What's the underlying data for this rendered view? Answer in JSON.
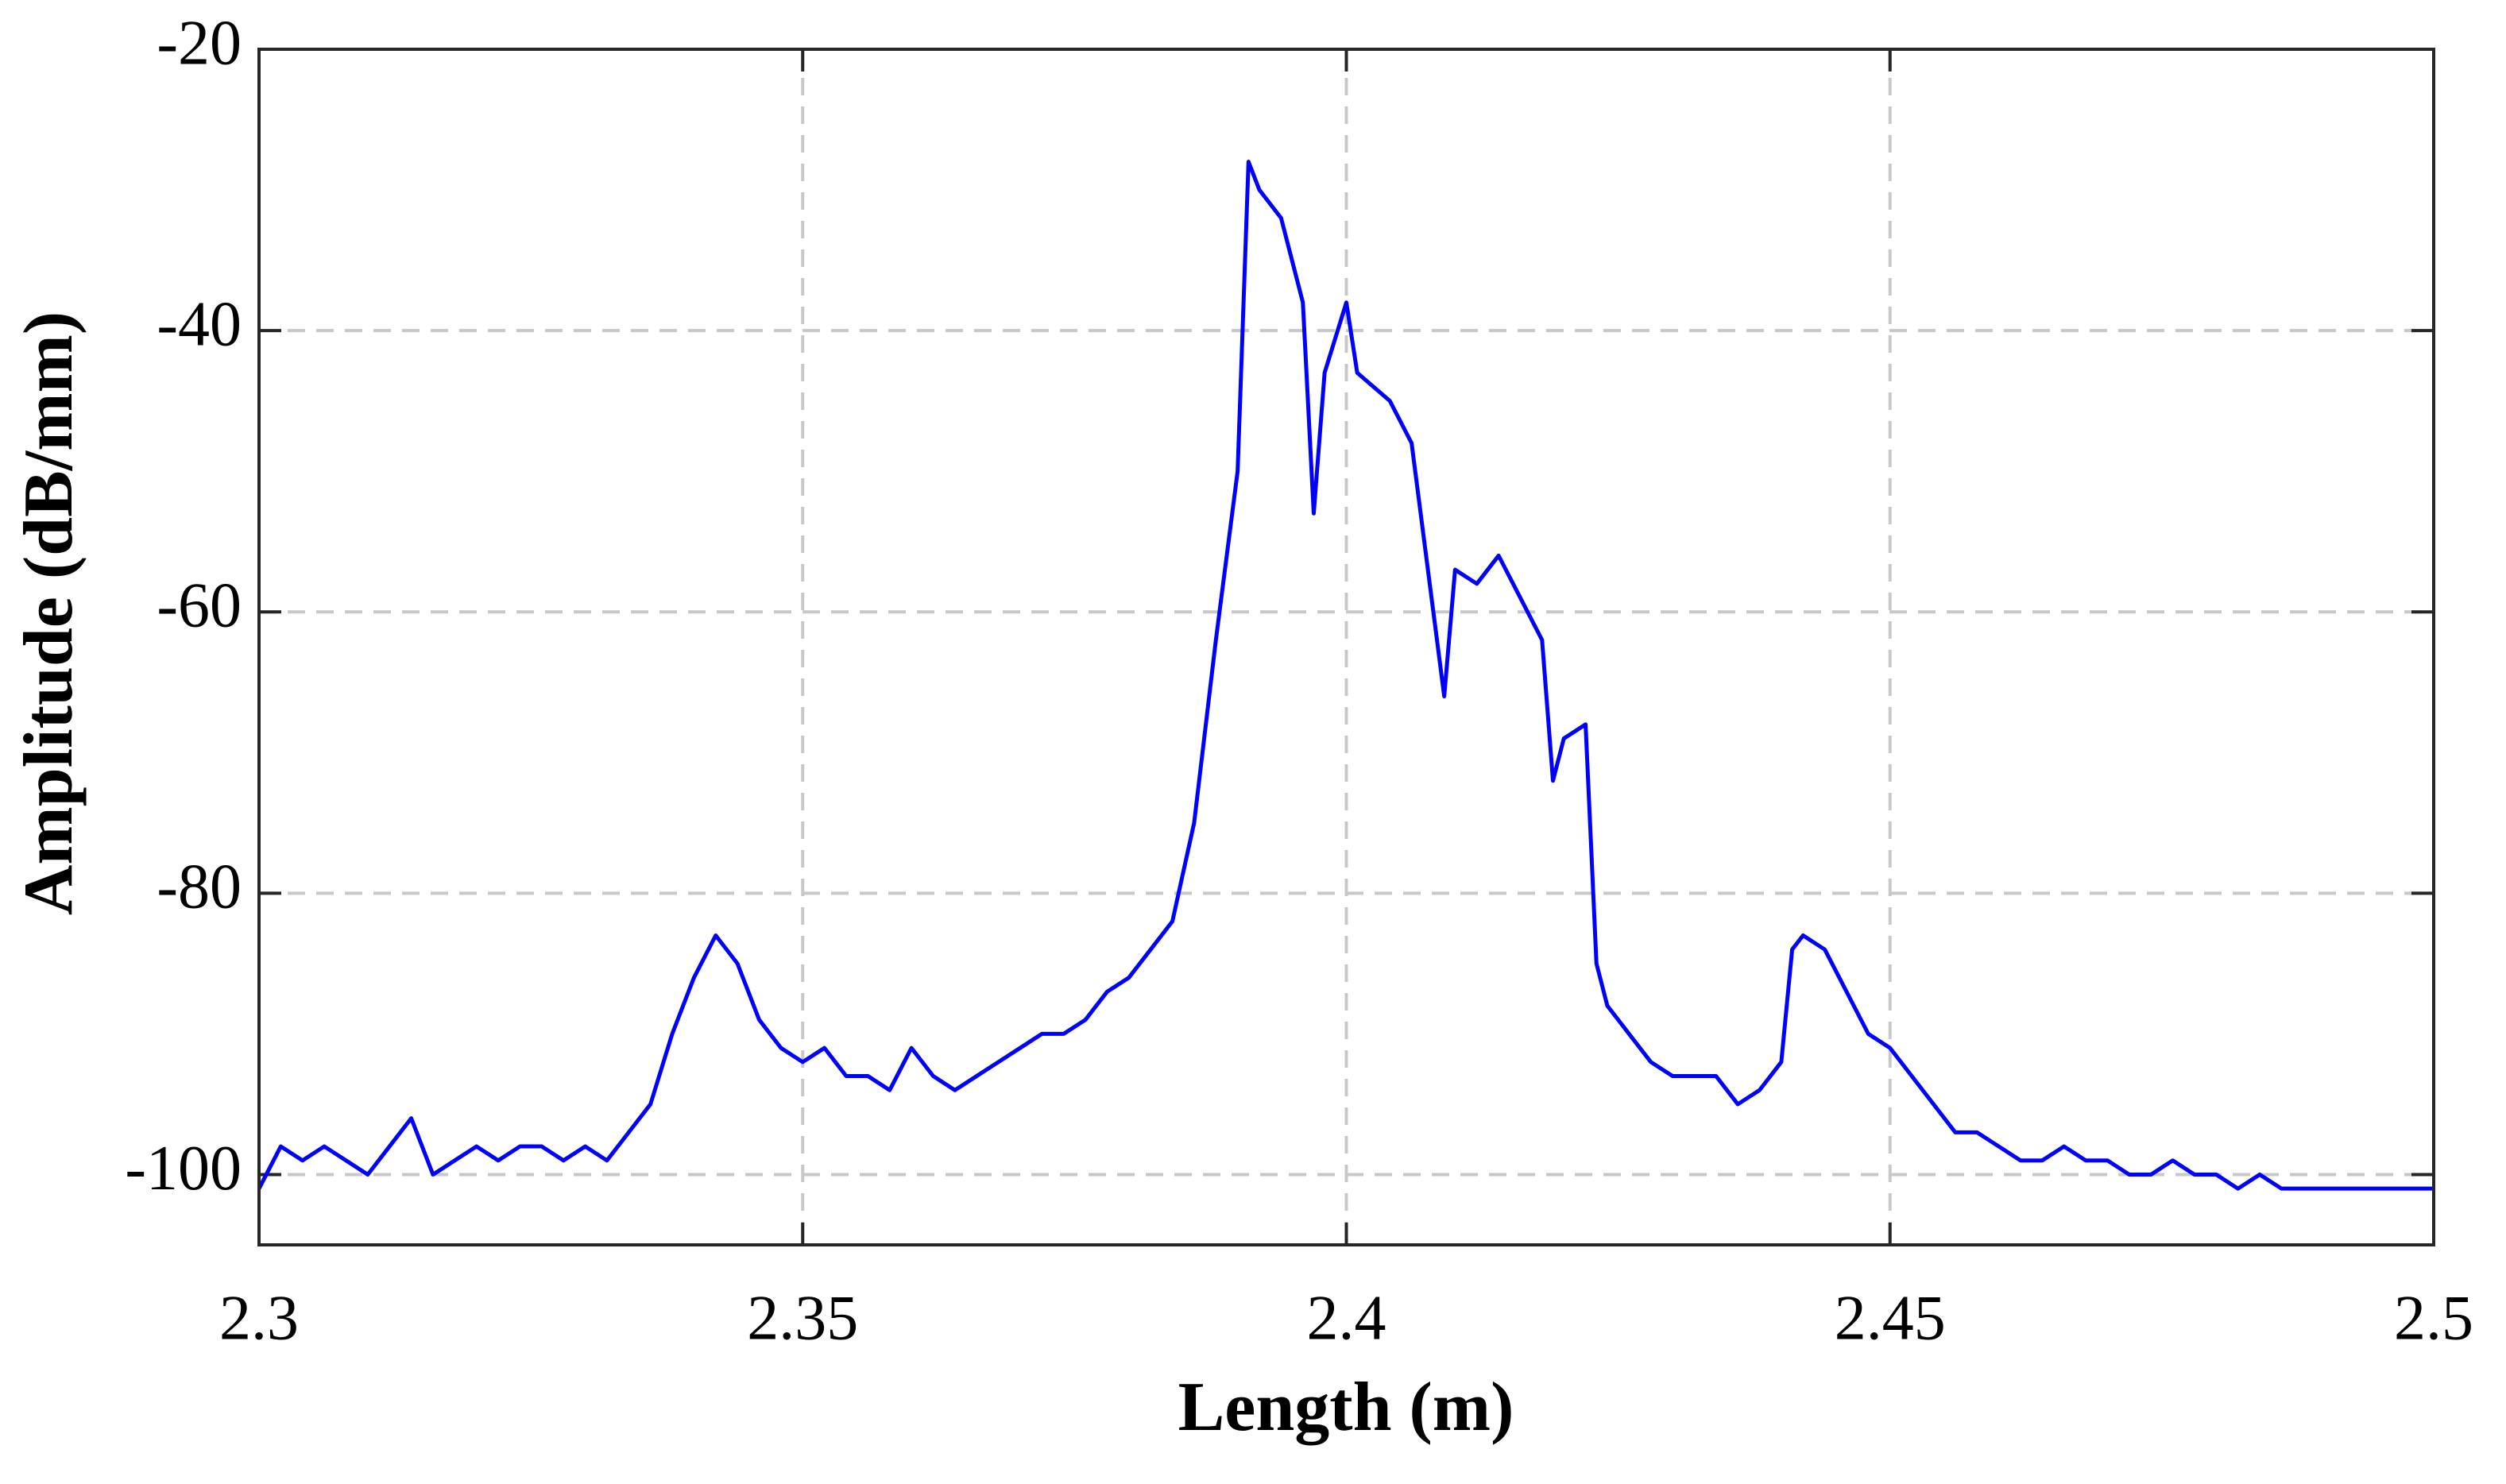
{
  "chart_data": {
    "type": "line",
    "xlabel": "Length (m)",
    "ylabel": "Amplitude (dB/mm)",
    "x": [
      2.3,
      2.302,
      2.304,
      2.306,
      2.308,
      2.31,
      2.312,
      2.314,
      2.316,
      2.318,
      2.32,
      2.322,
      2.324,
      2.326,
      2.328,
      2.33,
      2.332,
      2.334,
      2.336,
      2.338,
      2.34,
      2.342,
      2.344,
      2.346,
      2.348,
      2.35,
      2.352,
      2.354,
      2.356,
      2.358,
      2.36,
      2.362,
      2.364,
      2.366,
      2.368,
      2.37,
      2.372,
      2.374,
      2.376,
      2.378,
      2.38,
      2.382,
      2.384,
      2.386,
      2.388,
      2.39,
      2.391,
      2.392,
      2.394,
      2.396,
      2.397,
      2.398,
      2.4,
      2.401,
      2.404,
      2.406,
      2.408,
      2.409,
      2.41,
      2.412,
      2.414,
      2.416,
      2.418,
      2.419,
      2.42,
      2.422,
      2.423,
      2.424,
      2.426,
      2.428,
      2.43,
      2.432,
      2.434,
      2.436,
      2.438,
      2.44,
      2.441,
      2.442,
      2.444,
      2.446,
      2.448,
      2.45,
      2.452,
      2.454,
      2.456,
      2.458,
      2.46,
      2.462,
      2.464,
      2.466,
      2.468,
      2.47,
      2.472,
      2.474,
      2.476,
      2.478,
      2.48,
      2.482,
      2.484,
      2.486,
      2.488,
      2.49,
      2.492,
      2.494,
      2.496,
      2.498,
      2.5
    ],
    "values": [
      -101,
      -98,
      -99,
      -98,
      -99,
      -100,
      -98,
      -96,
      -100,
      -99,
      -98,
      -99,
      -98,
      -98,
      -99,
      -98,
      -99,
      -97,
      -95,
      -90,
      -86,
      -83,
      -85,
      -89,
      -91,
      -92,
      -91,
      -93,
      -93,
      -94,
      -91,
      -93,
      -94,
      -93,
      -92,
      -91,
      -90,
      -90,
      -89,
      -87,
      -86,
      -84,
      -82,
      -75,
      -62,
      -50,
      -28,
      -30,
      -32,
      -38,
      -53,
      -43,
      -38,
      -43,
      -45,
      -48,
      -60,
      -66,
      -57,
      -58,
      -56,
      -59,
      -62,
      -72,
      -69,
      -68,
      -85,
      -88,
      -90,
      -92,
      -93,
      -93,
      -93,
      -95,
      -94,
      -92,
      -84,
      -83,
      -84,
      -87,
      -90,
      -91,
      -93,
      -95,
      -97,
      -97,
      -98,
      -99,
      -99,
      -98,
      -99,
      -99,
      -100,
      -100,
      -99,
      -100,
      -100,
      -101,
      -100,
      -101,
      -101,
      -101,
      -101,
      -101,
      -101,
      -101,
      -101
    ],
    "color": "#0000ff",
    "xlim": [
      2.3,
      2.5
    ],
    "xticks": [
      2.3,
      2.35,
      2.4,
      2.45,
      2.5
    ],
    "ylim": [
      -105,
      -20
    ],
    "yticks": [
      -100,
      -80,
      -60,
      -40,
      -20
    ],
    "grid": true
  }
}
